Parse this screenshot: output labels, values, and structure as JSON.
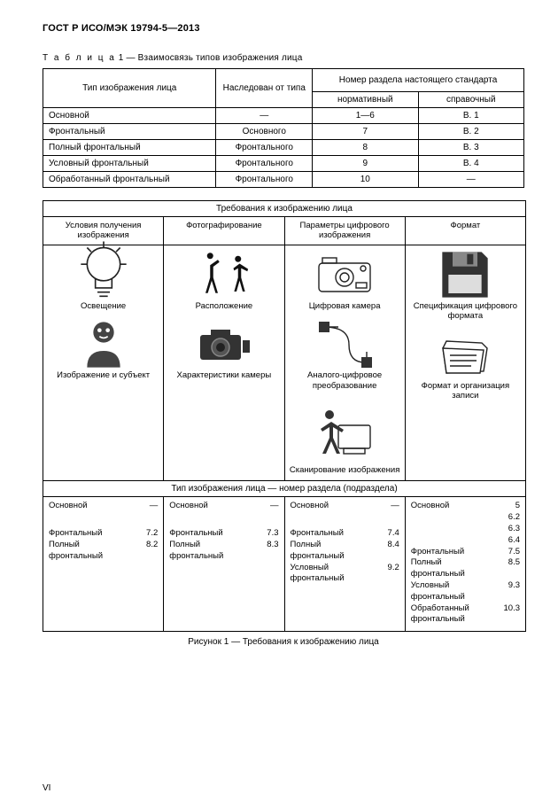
{
  "doc_id": "ГОСТ Р ИСО/МЭК 19794-5—2013",
  "table1": {
    "caption_spaced": "Т а б л и ц а",
    "caption_rest": " 1 — Взаимосвязь типов изображения лица",
    "headers": {
      "col1": "Тип изображения лица",
      "col2": "Наследован от типа",
      "col3_top": "Номер раздела настоящего стандарта",
      "col3a": "нормативный",
      "col3b": "справочный"
    },
    "rows": [
      {
        "c1": "Основной",
        "c2": "—",
        "c3": "1—6",
        "c4": "В. 1"
      },
      {
        "c1": "Фронтальный",
        "c2": "Основного",
        "c3": "7",
        "c4": "В. 2"
      },
      {
        "c1": "Полный фронтальный",
        "c2": "Фронтального",
        "c3": "8",
        "c4": "В. 3"
      },
      {
        "c1": "Условный фронтальный",
        "c2": "Фронтального",
        "c3": "9",
        "c4": "В. 4"
      },
      {
        "c1": "Обработанный фронтальный",
        "c2": "Фронтального",
        "c3": "10",
        "c4": "—"
      }
    ]
  },
  "figure": {
    "top_title": "Требования к изображению лица",
    "col_headers": [
      "Условия получения изображения",
      "Фотографирование",
      "Параметры цифрового изображения",
      "Формат"
    ],
    "columns": [
      [
        {
          "label": "Освещение"
        },
        {
          "label": "Изображение и субъект"
        }
      ],
      [
        {
          "label": "Расположение"
        },
        {
          "label": "Характеристики камеры"
        }
      ],
      [
        {
          "label": "Цифровая камера"
        },
        {
          "label": "Аналого-цифровое преобразование"
        },
        {
          "label": "Сканирование изображения"
        }
      ],
      [
        {
          "label": "Спецификация цифрового формата"
        },
        {
          "label": "Формат и организация записи"
        }
      ]
    ],
    "mid_title": "Тип изображения лица — номер раздела (подраздела)",
    "data_columns": [
      [
        {
          "name": "Основной",
          "num": "—"
        },
        {
          "gap": true
        },
        {
          "name": "Фронтальный",
          "num": "7.2"
        },
        {
          "name": "Полный фронтальный",
          "num": "8.2"
        }
      ],
      [
        {
          "name": "Основной",
          "num": "—"
        },
        {
          "gap": true
        },
        {
          "name": "Фронтальный",
          "num": "7.3"
        },
        {
          "name": "Полный фронтальный",
          "num": "8.3"
        }
      ],
      [
        {
          "name": "Основной",
          "num": "—"
        },
        {
          "gap": true
        },
        {
          "name": "Фронтальный",
          "num": "7.4"
        },
        {
          "name": "Полный фронтальный",
          "num": "8.4"
        },
        {
          "name": "Условный фронтальный",
          "num": "9.2"
        }
      ],
      [
        {
          "name": "Основной",
          "num": "5"
        },
        {
          "name": "",
          "num": "6.2"
        },
        {
          "name": "",
          "num": "6.3"
        },
        {
          "name": "",
          "num": "6.4"
        },
        {
          "name": "Фронтальный",
          "num": "7.5"
        },
        {
          "name": "Полный фронтальный",
          "num": "8.5"
        },
        {
          "name": "Условный фронтальный",
          "num": "9.3"
        },
        {
          "name": "Обработанный фронтальный",
          "num": "10.3"
        }
      ]
    ],
    "caption": "Рисунок 1 — Требования к изображению лица"
  },
  "page_number": "VI"
}
